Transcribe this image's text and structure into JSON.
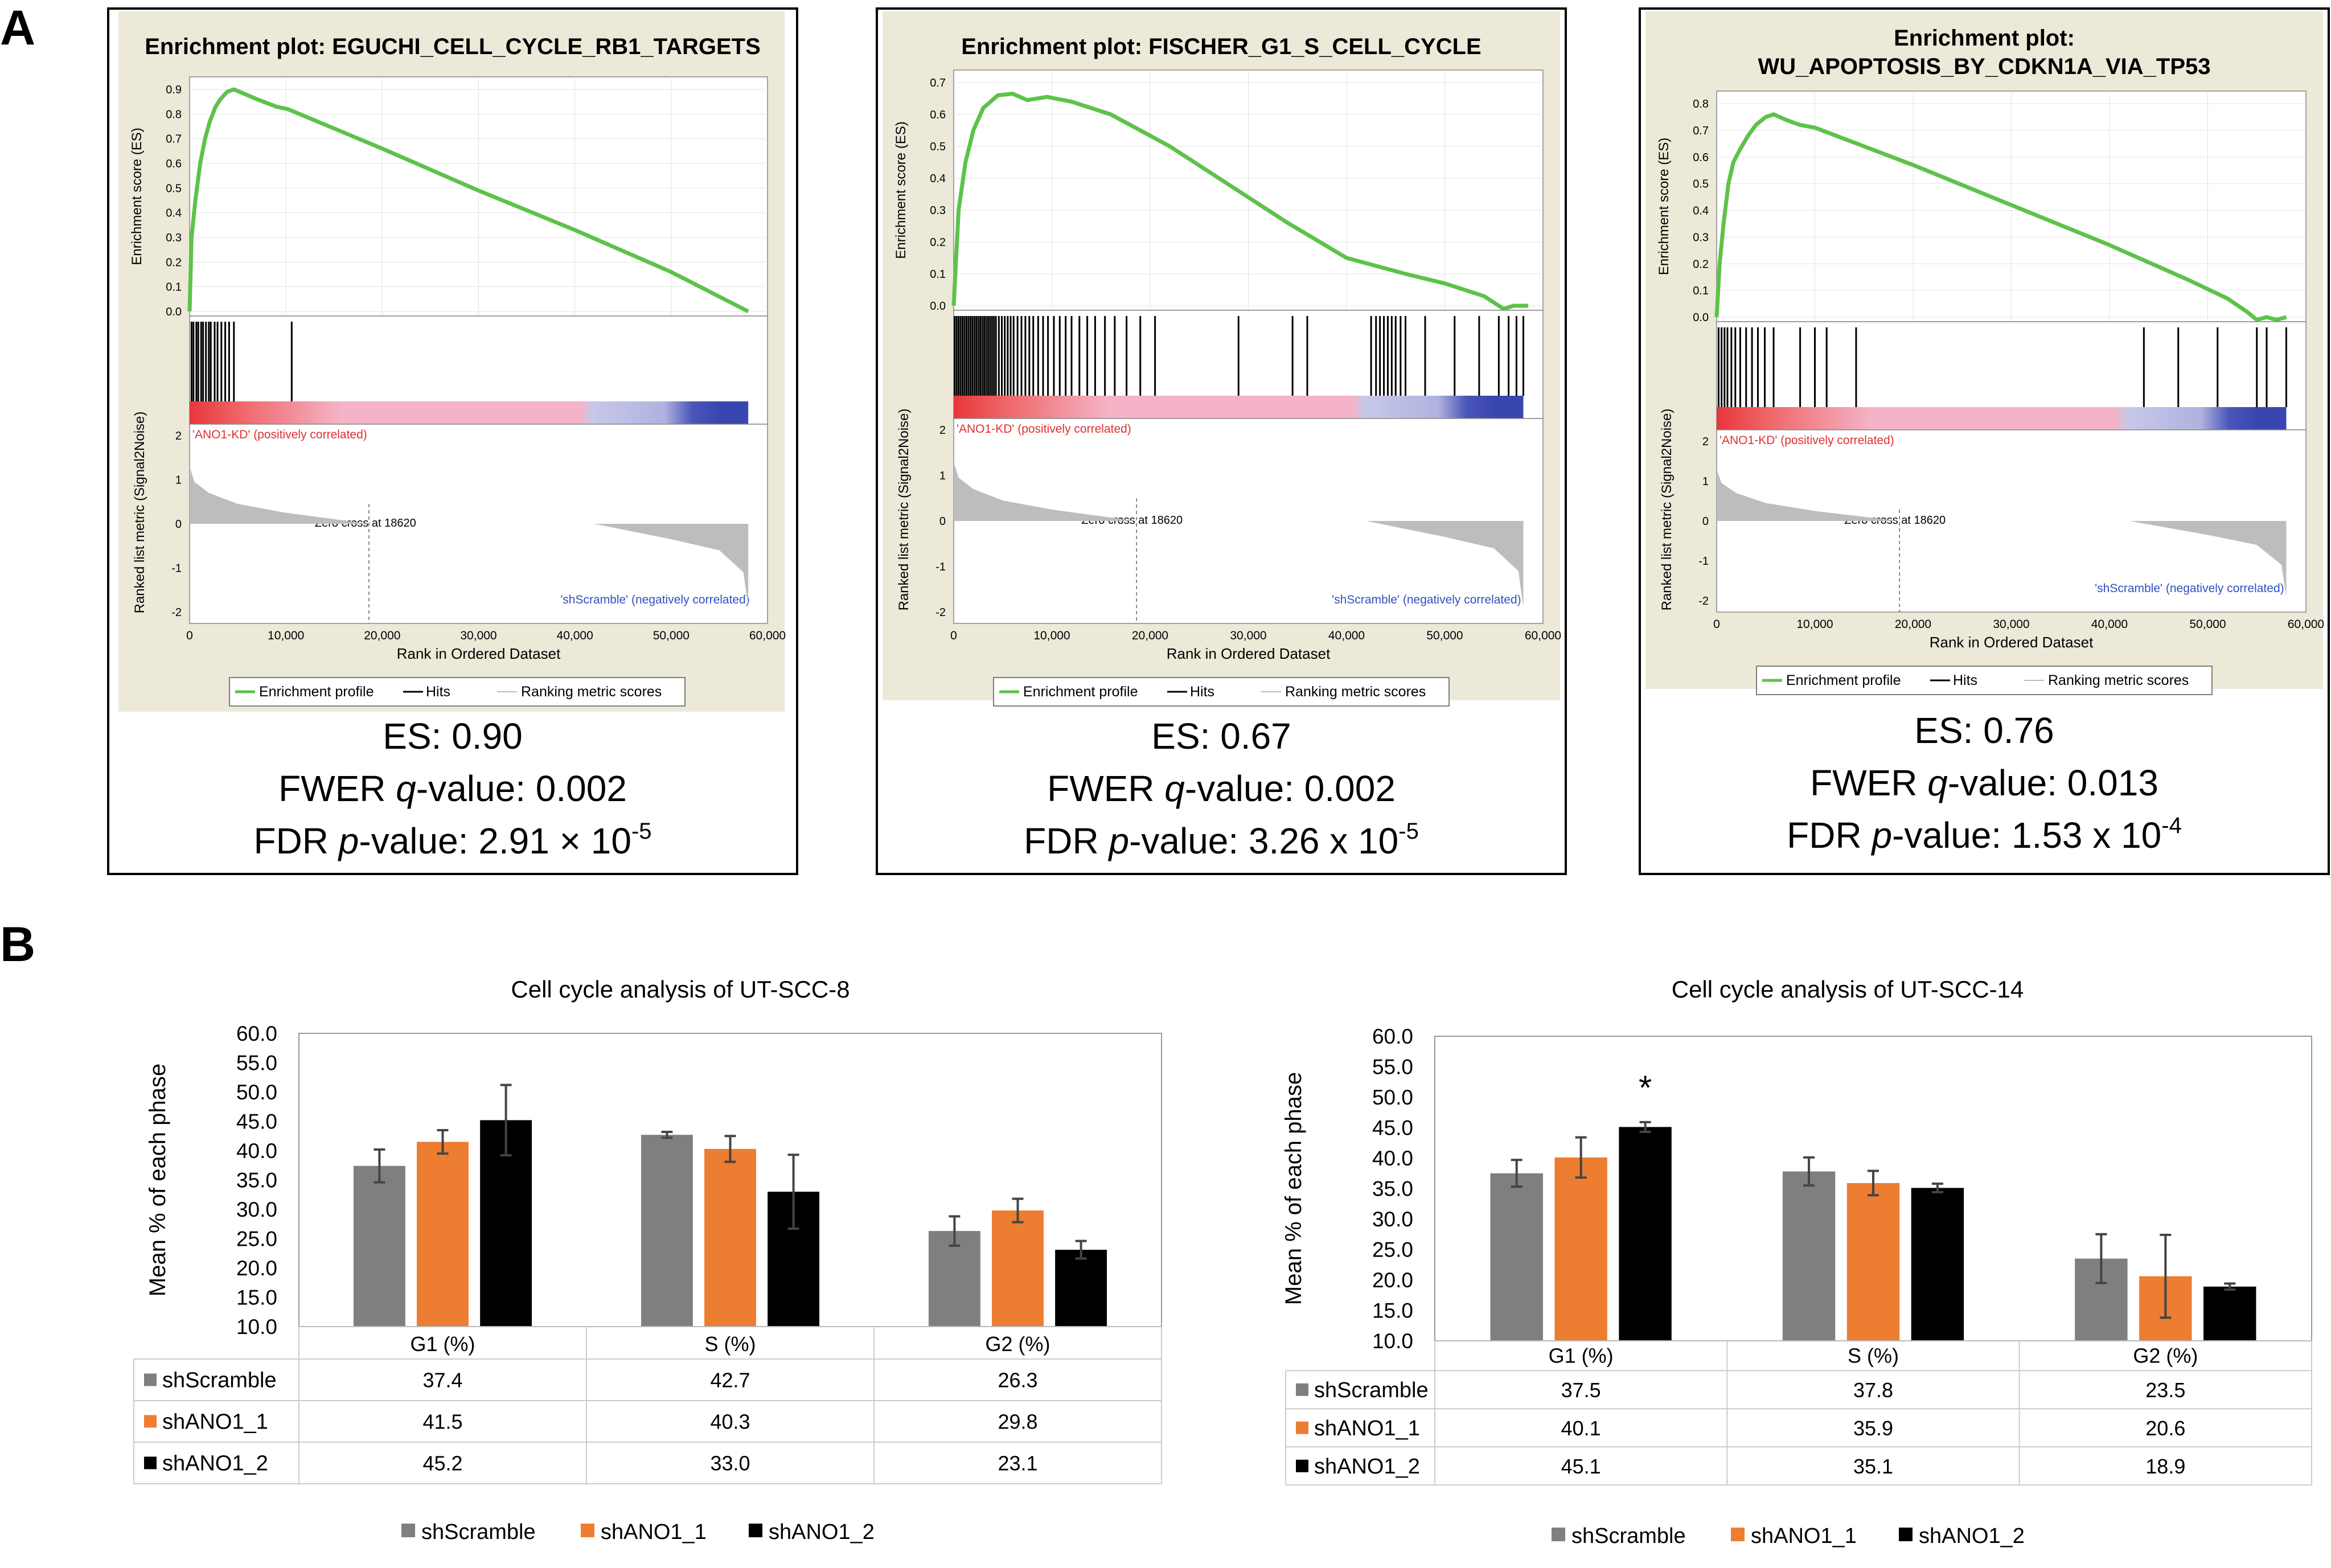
{
  "panel_labels": {
    "a": "A",
    "b": "B"
  },
  "colors": {
    "green": "#5ec24a",
    "grey": "#7f7f7f",
    "orange": "#ed7d31",
    "black": "#000000",
    "plot_bg": "#ece9d8"
  },
  "gsea_common": {
    "y_label_es": "Enrichment score (ES)",
    "y_label_metric": "Ranked list metric (Signal2Noise)",
    "x_label": "Rank in Ordered Dataset",
    "x_ticks": [
      "0",
      "10,000",
      "20,000",
      "30,000",
      "40,000",
      "50,000",
      "60,000"
    ],
    "metric_ticks": [
      "2",
      "1",
      "0",
      "-1",
      "-2"
    ],
    "pos_label": "'ANO1-KD' (positively correlated)",
    "neg_label": "'shScramble' (negatively correlated)",
    "zero_cross": "Zero cross at 18620",
    "legend": {
      "profile": "Enrichment profile",
      "hits": "Hits",
      "ranking": "Ranking metric scores"
    }
  },
  "chart_data": [
    {
      "type": "line",
      "title_lines": [
        "Enrichment plot: EGUCHI_CELL_CYCLE_RB1_TARGETS"
      ],
      "xlim": [
        0,
        60000
      ],
      "ylim": [
        0,
        0.9
      ],
      "y_ticks": [
        "0.9",
        "0.8",
        "0.7",
        "0.6",
        "0.5",
        "0.4",
        "0.3",
        "0.2",
        "0.1",
        "0.0"
      ],
      "profile": [
        [
          0,
          0
        ],
        [
          200,
          0.3
        ],
        [
          600,
          0.45
        ],
        [
          1100,
          0.6
        ],
        [
          1600,
          0.7
        ],
        [
          2100,
          0.77
        ],
        [
          2700,
          0.83
        ],
        [
          3200,
          0.86
        ],
        [
          3900,
          0.89
        ],
        [
          4600,
          0.9
        ],
        [
          7000,
          0.86
        ],
        [
          9000,
          0.83
        ],
        [
          10200,
          0.82
        ],
        [
          20000,
          0.66
        ],
        [
          30000,
          0.49
        ],
        [
          40000,
          0.33
        ],
        [
          50000,
          0.16
        ],
        [
          58000,
          0.0
        ]
      ],
      "hits": [
        200,
        400,
        700,
        900,
        1200,
        1400,
        1700,
        2000,
        2200,
        2600,
        2900,
        3300,
        3700,
        4100,
        4600,
        10600
      ],
      "stats": {
        "es": "ES: 0.90",
        "fwer": "0.002",
        "fdr_mant": "2.91 × 10",
        "fdr_exp": "-5"
      }
    },
    {
      "type": "line",
      "title_lines": [
        "Enrichment plot: FISCHER_G1_S_CELL_CYCLE"
      ],
      "xlim": [
        0,
        60000
      ],
      "ylim": [
        0,
        0.7
      ],
      "y_ticks": [
        "0.7",
        "0.6",
        "0.5",
        "0.4",
        "0.3",
        "0.2",
        "0.1",
        "0.0"
      ],
      "profile": [
        [
          0,
          0
        ],
        [
          500,
          0.3
        ],
        [
          1200,
          0.45
        ],
        [
          2000,
          0.55
        ],
        [
          3000,
          0.62
        ],
        [
          4500,
          0.66
        ],
        [
          6000,
          0.665
        ],
        [
          7500,
          0.645
        ],
        [
          9500,
          0.655
        ],
        [
          12000,
          0.64
        ],
        [
          16000,
          0.6
        ],
        [
          22000,
          0.5
        ],
        [
          28000,
          0.38
        ],
        [
          34000,
          0.26
        ],
        [
          40000,
          0.15
        ],
        [
          46000,
          0.1
        ],
        [
          50000,
          0.07
        ],
        [
          54000,
          0.03
        ],
        [
          56000,
          -0.01
        ],
        [
          57000,
          0.0
        ],
        [
          58500,
          0.0
        ]
      ],
      "hits": [
        100,
        300,
        500,
        700,
        900,
        1100,
        1300,
        1500,
        1700,
        1900,
        2100,
        2300,
        2500,
        2700,
        2900,
        3100,
        3300,
        3500,
        3700,
        3900,
        4100,
        4300,
        4600,
        4900,
        5200,
        5500,
        5800,
        6100,
        6500,
        6900,
        7300,
        7700,
        8100,
        8600,
        9100,
        9600,
        10200,
        10800,
        11400,
        12000,
        12800,
        13600,
        14400,
        15400,
        16400,
        17600,
        19000,
        20500,
        29000,
        34500,
        36000,
        42500,
        43000,
        43400,
        43800,
        44200,
        44600,
        45000,
        45500,
        46000,
        48000,
        51000,
        53500,
        55500,
        56500,
        57300,
        58000
      ],
      "stats": {
        "es": "ES: 0.67",
        "fwer": "0.002",
        "fdr_mant": "3.26 x 10",
        "fdr_exp": "-5"
      }
    },
    {
      "type": "line",
      "title_lines": [
        "Enrichment plot:",
        "WU_APOPTOSIS_BY_CDKN1A_VIA_TP53"
      ],
      "xlim": [
        0,
        60000
      ],
      "ylim": [
        0,
        0.8
      ],
      "y_ticks": [
        "0.8",
        "0.7",
        "0.6",
        "0.5",
        "0.4",
        "0.3",
        "0.2",
        "0.1",
        "0.0"
      ],
      "profile": [
        [
          0,
          0
        ],
        [
          300,
          0.2
        ],
        [
          700,
          0.35
        ],
        [
          1200,
          0.5
        ],
        [
          1700,
          0.58
        ],
        [
          2400,
          0.63
        ],
        [
          3200,
          0.68
        ],
        [
          4000,
          0.72
        ],
        [
          5000,
          0.75
        ],
        [
          5800,
          0.76
        ],
        [
          7000,
          0.74
        ],
        [
          8500,
          0.72
        ],
        [
          10000,
          0.71
        ],
        [
          20000,
          0.57
        ],
        [
          30000,
          0.42
        ],
        [
          40000,
          0.27
        ],
        [
          48000,
          0.14
        ],
        [
          52000,
          0.07
        ],
        [
          54000,
          0.02
        ],
        [
          55000,
          -0.01
        ],
        [
          56000,
          0.0
        ],
        [
          57000,
          -0.01
        ],
        [
          58000,
          0.0
        ]
      ],
      "hits": [
        200,
        500,
        800,
        1100,
        1500,
        1900,
        2400,
        3000,
        3600,
        4200,
        4900,
        5800,
        8500,
        10000,
        11200,
        14200,
        43500,
        47000,
        51000,
        55000,
        56000,
        58000
      ],
      "stats": {
        "es": "ES: 0.76",
        "fwer": "0.013",
        "fdr_mant": "1.53 x 10",
        "fdr_exp": "-4"
      }
    },
    {
      "type": "bar",
      "title": "Cell cycle analysis of UT-SCC-8",
      "ylabel": "Mean % of each phase",
      "ylim": [
        10,
        60
      ],
      "y_ticks": [
        "60.0",
        "55.0",
        "50.0",
        "45.0",
        "40.0",
        "35.0",
        "30.0",
        "25.0",
        "20.0",
        "15.0",
        "10.0"
      ],
      "categories": [
        "G1 (%)",
        "S (%)",
        "G2 (%)"
      ],
      "series": [
        {
          "name": "shScramble",
          "values": [
            37.4,
            42.7,
            26.3
          ],
          "errors": [
            2.8,
            0.5,
            2.5
          ]
        },
        {
          "name": "shANO1_1",
          "values": [
            41.5,
            40.3,
            29.8
          ],
          "errors": [
            2.0,
            2.2,
            2.0
          ]
        },
        {
          "name": "shANO1_2",
          "values": [
            45.2,
            33.0,
            23.1
          ],
          "errors": [
            6.0,
            6.3,
            1.5
          ]
        }
      ],
      "table_values": [
        [
          "37.4",
          "42.7",
          "26.3"
        ],
        [
          "41.5",
          "40.3",
          "29.8"
        ],
        [
          "45.2",
          "33.0",
          "23.1"
        ]
      ],
      "annotations": []
    },
    {
      "type": "bar",
      "title": "Cell cycle analysis of UT-SCC-14",
      "ylabel": "Mean % of each phase",
      "ylim": [
        10,
        60
      ],
      "y_ticks": [
        "60.0",
        "55.0",
        "50.0",
        "45.0",
        "40.0",
        "35.0",
        "30.0",
        "25.0",
        "20.0",
        "15.0",
        "10.0"
      ],
      "categories": [
        "G1 (%)",
        "S (%)",
        "G2 (%)"
      ],
      "series": [
        {
          "name": "shScramble",
          "values": [
            37.5,
            37.8,
            23.5
          ],
          "errors": [
            2.2,
            2.3,
            4.0
          ]
        },
        {
          "name": "shANO1_1",
          "values": [
            40.1,
            35.9,
            20.6
          ],
          "errors": [
            3.3,
            2.0,
            6.8
          ]
        },
        {
          "name": "shANO1_2",
          "values": [
            45.1,
            35.1,
            18.9
          ],
          "errors": [
            0.8,
            0.7,
            0.5
          ]
        }
      ],
      "table_values": [
        [
          "37.5",
          "37.8",
          "23.5"
        ],
        [
          "40.1",
          "35.9",
          "20.6"
        ],
        [
          "45.1",
          "35.1",
          "18.9"
        ]
      ],
      "annotations": [
        {
          "text": "*",
          "category": 0,
          "series": 2
        }
      ]
    }
  ],
  "stats_labels": {
    "fwer_pre": "FWER ",
    "q": "q",
    "fwer_post": "-value: ",
    "fdr_pre": "FDR ",
    "p": "p",
    "fdr_post": "-value: "
  }
}
